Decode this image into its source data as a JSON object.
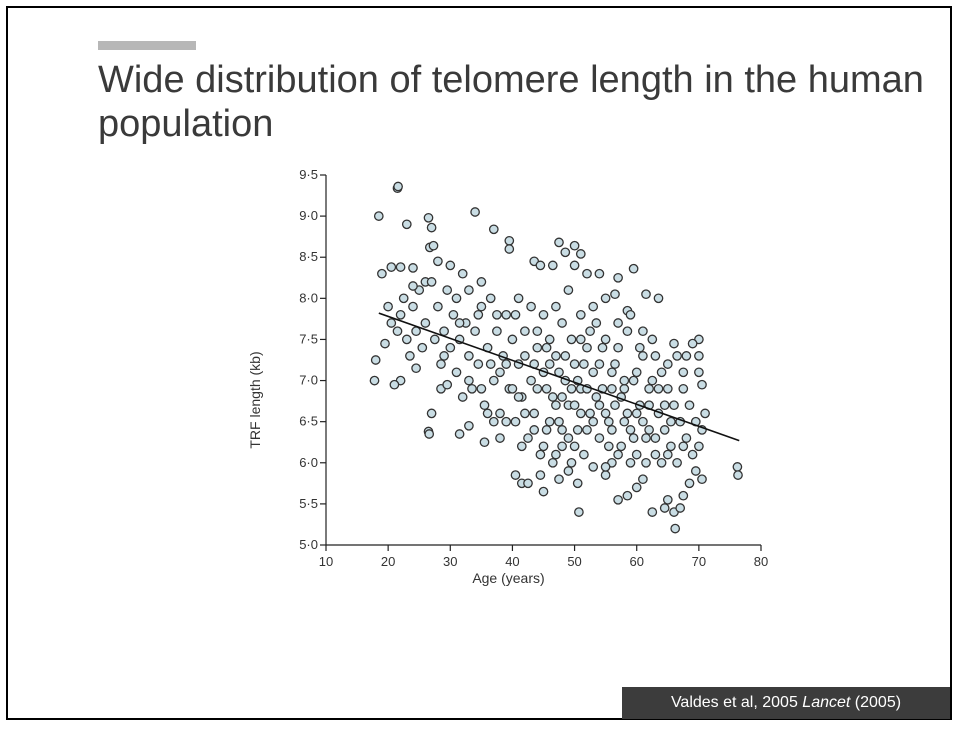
{
  "slide": {
    "title": "Wide distribution of telomere length in the human population",
    "citation_prefix": "Valdes et al, 2005 ",
    "citation_journal": "Lancet",
    "citation_suffix": "  (2005)"
  },
  "chart_data": {
    "type": "scatter",
    "title": "",
    "xlabel": "Age (years)",
    "ylabel": "TRF length (kb)",
    "xlim": [
      10,
      80
    ],
    "ylim": [
      5.0,
      9.5
    ],
    "xticks": [
      10,
      20,
      30,
      40,
      50,
      60,
      70,
      80
    ],
    "xtick_labels": [
      "10",
      "20",
      "30",
      "40",
      "50",
      "60",
      "70",
      "80"
    ],
    "yticks": [
      5.0,
      5.5,
      6.0,
      6.5,
      7.0,
      7.5,
      8.0,
      8.5,
      9.0,
      9.5
    ],
    "ytick_labels": [
      "5·0",
      "5·5",
      "6·0",
      "6·5",
      "7·0",
      "7·5",
      "8·0",
      "8·5",
      "9·0",
      "9·5"
    ],
    "grid": false,
    "marker_fill": "#c9dde4",
    "marker_edge": "#333333",
    "trend_line": {
      "x": [
        18.5,
        76.5
      ],
      "y": [
        7.82,
        6.27
      ]
    },
    "series": [
      {
        "values": [
          [
            18.5,
            9.0
          ],
          [
            21.5,
            9.34
          ],
          [
            21.6,
            9.36
          ],
          [
            23.0,
            8.9
          ],
          [
            26.5,
            8.98
          ],
          [
            27.0,
            8.86
          ],
          [
            26.7,
            8.62
          ],
          [
            27.3,
            8.64
          ],
          [
            34.0,
            9.05
          ],
          [
            37.0,
            8.84
          ],
          [
            39.5,
            8.7
          ],
          [
            39.5,
            8.6
          ],
          [
            43.5,
            8.45
          ],
          [
            44.5,
            8.4
          ],
          [
            46.5,
            8.4
          ],
          [
            47.5,
            8.68
          ],
          [
            48.5,
            8.56
          ],
          [
            50.0,
            8.64
          ],
          [
            51.0,
            8.54
          ],
          [
            50.0,
            8.4
          ],
          [
            52.0,
            8.3
          ],
          [
            54.0,
            8.3
          ],
          [
            57.0,
            8.25
          ],
          [
            59.5,
            8.36
          ],
          [
            19.0,
            8.3
          ],
          [
            20.5,
            8.38
          ],
          [
            22.0,
            8.38
          ],
          [
            24.0,
            8.37
          ],
          [
            28.0,
            8.45
          ],
          [
            30.0,
            8.4
          ],
          [
            32.0,
            8.3
          ],
          [
            35.0,
            8.2
          ],
          [
            17.8,
            7.0
          ],
          [
            18.0,
            7.25
          ],
          [
            19.5,
            7.45
          ],
          [
            22.0,
            7.0
          ],
          [
            21.0,
            6.95
          ],
          [
            24.5,
            7.15
          ],
          [
            26.5,
            6.38
          ],
          [
            26.6,
            6.35
          ],
          [
            27.0,
            6.6
          ],
          [
            28.5,
            6.9
          ],
          [
            29.5,
            6.95
          ],
          [
            31.5,
            6.35
          ],
          [
            33.0,
            6.45
          ],
          [
            35.5,
            6.25
          ],
          [
            38.0,
            6.3
          ],
          [
            40.5,
            5.85
          ],
          [
            41.5,
            5.75
          ],
          [
            42.5,
            5.75
          ],
          [
            44.5,
            5.85
          ],
          [
            45.0,
            5.65
          ],
          [
            47.5,
            5.8
          ],
          [
            50.5,
            5.75
          ],
          [
            50.7,
            5.4
          ],
          [
            55.0,
            5.85
          ],
          [
            57.0,
            5.55
          ],
          [
            58.5,
            5.6
          ],
          [
            60.0,
            5.7
          ],
          [
            61.0,
            5.8
          ],
          [
            62.5,
            5.4
          ],
          [
            64.5,
            5.45
          ],
          [
            65.0,
            5.55
          ],
          [
            66.0,
            5.4
          ],
          [
            67.0,
            5.45
          ],
          [
            66.2,
            5.2
          ],
          [
            67.5,
            5.6
          ],
          [
            68.5,
            5.75
          ],
          [
            69.5,
            5.9
          ],
          [
            70.5,
            5.8
          ],
          [
            76.2,
            5.95
          ],
          [
            76.3,
            5.85
          ],
          [
            70.0,
            7.5
          ],
          [
            70.0,
            7.3
          ],
          [
            70.0,
            7.1
          ],
          [
            70.5,
            6.95
          ],
          [
            71.0,
            6.6
          ],
          [
            70.5,
            6.4
          ],
          [
            69.0,
            7.45
          ],
          [
            68.0,
            7.3
          ],
          [
            67.5,
            7.1
          ],
          [
            66.0,
            7.45
          ],
          [
            63.5,
            8.0
          ],
          [
            61.5,
            8.05
          ],
          [
            58.5,
            7.85
          ],
          [
            56.5,
            8.05
          ],
          [
            20.0,
            7.9
          ],
          [
            20.5,
            7.7
          ],
          [
            21.5,
            7.6
          ],
          [
            22.0,
            7.8
          ],
          [
            22.5,
            8.0
          ],
          [
            23.0,
            7.5
          ],
          [
            23.5,
            7.3
          ],
          [
            24.0,
            7.9
          ],
          [
            24.5,
            7.6
          ],
          [
            25.0,
            8.1
          ],
          [
            25.5,
            7.4
          ],
          [
            26.0,
            7.7
          ],
          [
            26.0,
            8.2
          ],
          [
            27.5,
            7.5
          ],
          [
            28.0,
            7.9
          ],
          [
            28.5,
            7.2
          ],
          [
            29.0,
            7.6
          ],
          [
            29.5,
            8.1
          ],
          [
            30.0,
            7.4
          ],
          [
            30.5,
            7.8
          ],
          [
            31.0,
            7.1
          ],
          [
            31.0,
            8.0
          ],
          [
            31.5,
            7.5
          ],
          [
            32.0,
            6.8
          ],
          [
            32.5,
            7.7
          ],
          [
            33.0,
            7.3
          ],
          [
            33.0,
            8.1
          ],
          [
            33.5,
            6.9
          ],
          [
            34.0,
            7.6
          ],
          [
            34.5,
            7.2
          ],
          [
            35.0,
            7.9
          ],
          [
            35.5,
            6.7
          ],
          [
            36.0,
            7.4
          ],
          [
            36.5,
            8.0
          ],
          [
            37.0,
            7.0
          ],
          [
            37.5,
            7.6
          ],
          [
            38.0,
            6.6
          ],
          [
            38.5,
            7.3
          ],
          [
            39.0,
            7.8
          ],
          [
            39.5,
            6.9
          ],
          [
            40.0,
            7.5
          ],
          [
            40.5,
            6.5
          ],
          [
            41.0,
            7.2
          ],
          [
            41.0,
            8.0
          ],
          [
            41.5,
            6.8
          ],
          [
            42.0,
            7.6
          ],
          [
            42.5,
            6.3
          ],
          [
            43.0,
            7.0
          ],
          [
            43.0,
            7.9
          ],
          [
            43.5,
            6.6
          ],
          [
            44.0,
            7.4
          ],
          [
            44.5,
            6.1
          ],
          [
            45.0,
            7.1
          ],
          [
            45.0,
            7.8
          ],
          [
            45.5,
            6.4
          ],
          [
            46.0,
            7.5
          ],
          [
            46.5,
            6.0
          ],
          [
            46.5,
            6.8
          ],
          [
            47.0,
            7.3
          ],
          [
            47.5,
            6.5
          ],
          [
            48.0,
            7.7
          ],
          [
            48.0,
            6.2
          ],
          [
            48.5,
            7.0
          ],
          [
            49.0,
            6.7
          ],
          [
            49.5,
            7.5
          ],
          [
            49.5,
            6.0
          ],
          [
            50.0,
            7.2
          ],
          [
            50.5,
            6.4
          ],
          [
            51.0,
            7.8
          ],
          [
            51.0,
            6.9
          ],
          [
            51.5,
            6.1
          ],
          [
            52.0,
            7.4
          ],
          [
            52.5,
            6.6
          ],
          [
            53.0,
            7.1
          ],
          [
            53.0,
            5.95
          ],
          [
            53.5,
            7.7
          ],
          [
            54.0,
            6.3
          ],
          [
            54.5,
            6.9
          ],
          [
            55.0,
            7.5
          ],
          [
            55.5,
            6.5
          ],
          [
            56.0,
            7.1
          ],
          [
            56.0,
            6.0
          ],
          [
            56.5,
            6.7
          ],
          [
            57.0,
            7.4
          ],
          [
            57.5,
            6.2
          ],
          [
            58.0,
            6.9
          ],
          [
            58.5,
            7.6
          ],
          [
            59.0,
            6.4
          ],
          [
            59.5,
            7.0
          ],
          [
            60.0,
            6.1
          ],
          [
            60.5,
            6.7
          ],
          [
            61.0,
            7.3
          ],
          [
            61.5,
            6.3
          ],
          [
            62.0,
            6.9
          ],
          [
            62.5,
            7.5
          ],
          [
            63.0,
            6.1
          ],
          [
            63.5,
            6.6
          ],
          [
            64.0,
            7.1
          ],
          [
            64.5,
            6.4
          ],
          [
            65.0,
            6.9
          ],
          [
            65.5,
            6.2
          ],
          [
            66.0,
            6.7
          ],
          [
            66.5,
            6.0
          ],
          [
            67.0,
            6.5
          ],
          [
            67.5,
            6.9
          ],
          [
            68.0,
            6.3
          ],
          [
            68.5,
            6.7
          ],
          [
            69.0,
            6.1
          ],
          [
            69.5,
            6.5
          ],
          [
            70.0,
            6.2
          ],
          [
            36.0,
            6.6
          ],
          [
            38.0,
            7.1
          ],
          [
            40.0,
            6.9
          ],
          [
            42.0,
            7.3
          ],
          [
            44.0,
            6.9
          ],
          [
            46.0,
            7.2
          ],
          [
            48.0,
            6.8
          ],
          [
            50.0,
            6.7
          ],
          [
            52.0,
            6.4
          ],
          [
            54.0,
            6.7
          ],
          [
            56.0,
            6.4
          ],
          [
            58.0,
            6.5
          ],
          [
            60.0,
            6.6
          ],
          [
            62.0,
            6.4
          ],
          [
            64.0,
            6.0
          ],
          [
            46.0,
            6.5
          ],
          [
            48.0,
            6.4
          ],
          [
            50.0,
            6.2
          ],
          [
            52.0,
            6.9
          ],
          [
            54.0,
            7.2
          ],
          [
            56.0,
            6.9
          ],
          [
            58.0,
            7.0
          ],
          [
            60.0,
            7.1
          ],
          [
            62.0,
            6.7
          ],
          [
            44.0,
            7.6
          ],
          [
            47.0,
            7.9
          ],
          [
            49.0,
            8.1
          ],
          [
            51.0,
            7.5
          ],
          [
            53.0,
            7.9
          ],
          [
            55.0,
            8.0
          ],
          [
            57.0,
            7.7
          ],
          [
            59.0,
            7.8
          ],
          [
            61.0,
            7.6
          ],
          [
            63.0,
            7.3
          ],
          [
            65.0,
            7.2
          ],
          [
            41.5,
            6.2
          ],
          [
            43.5,
            6.4
          ],
          [
            45.5,
            6.9
          ],
          [
            47.5,
            7.1
          ],
          [
            49.5,
            6.9
          ],
          [
            51.5,
            7.2
          ],
          [
            53.5,
            6.8
          ],
          [
            55.5,
            6.2
          ],
          [
            57.5,
            6.8
          ],
          [
            59.5,
            6.3
          ],
          [
            61.5,
            6.0
          ],
          [
            63.5,
            6.9
          ],
          [
            65.5,
            6.5
          ],
          [
            67.5,
            6.2
          ],
          [
            24.0,
            8.15
          ],
          [
            27.0,
            8.2
          ],
          [
            29.0,
            7.3
          ],
          [
            31.5,
            7.7
          ],
          [
            34.5,
            7.8
          ],
          [
            36.5,
            7.2
          ],
          [
            37.5,
            7.8
          ],
          [
            39.0,
            7.2
          ],
          [
            40.5,
            7.8
          ],
          [
            42.0,
            6.6
          ],
          [
            43.5,
            7.2
          ],
          [
            45.5,
            7.4
          ],
          [
            47.0,
            6.7
          ],
          [
            48.5,
            7.3
          ],
          [
            50.5,
            7.0
          ],
          [
            52.5,
            7.6
          ],
          [
            54.5,
            7.4
          ],
          [
            56.5,
            7.2
          ],
          [
            58.5,
            6.6
          ],
          [
            60.5,
            7.4
          ],
          [
            62.5,
            7.0
          ],
          [
            64.5,
            6.7
          ],
          [
            66.5,
            7.3
          ],
          [
            45.0,
            6.2
          ],
          [
            47.0,
            6.1
          ],
          [
            49.0,
            6.3
          ],
          [
            51.0,
            6.6
          ],
          [
            53.0,
            6.5
          ],
          [
            55.0,
            6.6
          ],
          [
            57.0,
            6.1
          ],
          [
            59.0,
            6.0
          ],
          [
            61.0,
            6.5
          ],
          [
            63.0,
            6.3
          ],
          [
            65.0,
            6.1
          ],
          [
            35.0,
            6.9
          ],
          [
            33.0,
            7.0
          ],
          [
            37.0,
            6.5
          ],
          [
            39.0,
            6.5
          ],
          [
            41.0,
            6.8
          ],
          [
            55.0,
            5.95
          ],
          [
            49.0,
            5.9
          ]
        ]
      }
    ]
  }
}
